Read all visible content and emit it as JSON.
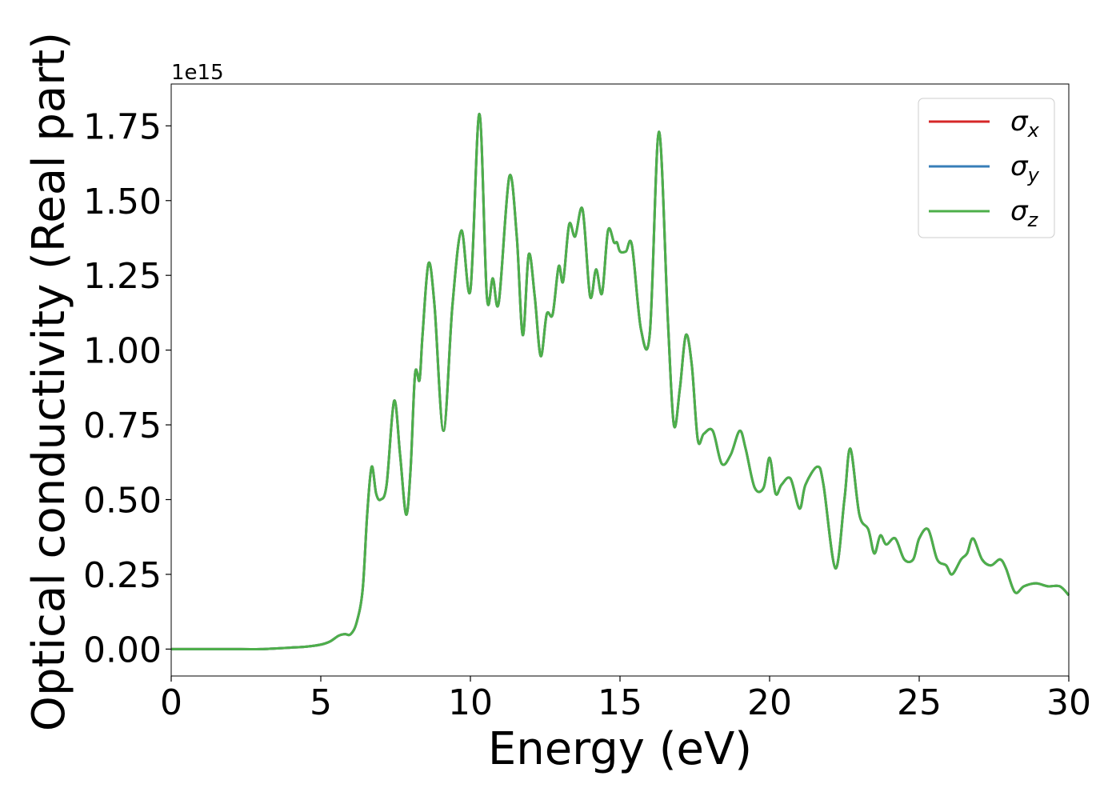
{
  "chart_data": {
    "type": "line",
    "title": "",
    "xlabel": "Energy (eV)",
    "ylabel": "Optical conductivity (Real part)",
    "y_offset_label": "1e15",
    "y_scale_factor": 1000000000000000.0,
    "xlim": [
      0,
      30
    ],
    "ylim": [
      -0.09,
      1.89
    ],
    "x_ticks": [
      0,
      5,
      10,
      15,
      20,
      25,
      30
    ],
    "x_tick_labels": [
      "0",
      "5",
      "10",
      "15",
      "20",
      "25",
      "30"
    ],
    "y_ticks": [
      0,
      0.25,
      0.5,
      0.75,
      1.0,
      1.25,
      1.5,
      1.75
    ],
    "y_tick_labels": [
      "0.00",
      "0.25",
      "0.50",
      "0.75",
      "1.00",
      "1.25",
      "1.50",
      "1.75"
    ],
    "grid": false,
    "legend_position": "top-right",
    "x": [
      0,
      1,
      2,
      3,
      4,
      4.5,
      5,
      5.3,
      5.6,
      5.8,
      6.0,
      6.2,
      6.4,
      6.55,
      6.7,
      6.85,
      7.0,
      7.2,
      7.45,
      7.65,
      7.85,
      8.0,
      8.15,
      8.3,
      8.4,
      8.6,
      8.8,
      9.1,
      9.4,
      9.7,
      10.0,
      10.3,
      10.55,
      10.75,
      10.95,
      11.3,
      11.55,
      11.75,
      11.95,
      12.15,
      12.35,
      12.55,
      12.75,
      12.95,
      13.1,
      13.3,
      13.5,
      13.75,
      14.0,
      14.2,
      14.4,
      14.6,
      14.8,
      14.9,
      15.0,
      15.2,
      15.4,
      15.7,
      16.0,
      16.3,
      16.6,
      16.8,
      17.0,
      17.2,
      17.4,
      17.6,
      17.8,
      18.1,
      18.4,
      18.7,
      19.0,
      19.2,
      19.5,
      19.8,
      20.0,
      20.2,
      20.4,
      20.7,
      21.0,
      21.2,
      21.6,
      21.8,
      22.2,
      22.5,
      22.7,
      23.0,
      23.3,
      23.5,
      23.7,
      23.9,
      24.2,
      24.5,
      24.8,
      25.0,
      25.3,
      25.6,
      25.9,
      26.1,
      26.4,
      26.6,
      26.8,
      27.1,
      27.4,
      27.7,
      27.9,
      28.2,
      28.5,
      28.9,
      29.3,
      29.7,
      30.0
    ],
    "series": [
      {
        "name": "σx",
        "color": "#d62728",
        "values": [
          0,
          0,
          0,
          0,
          0.005,
          0.008,
          0.015,
          0.025,
          0.045,
          0.05,
          0.05,
          0.09,
          0.2,
          0.45,
          0.61,
          0.52,
          0.5,
          0.55,
          0.83,
          0.65,
          0.45,
          0.6,
          0.92,
          0.9,
          1.05,
          1.29,
          1.15,
          0.73,
          1.15,
          1.4,
          1.2,
          1.79,
          1.18,
          1.24,
          1.16,
          1.58,
          1.38,
          1.05,
          1.32,
          1.18,
          0.98,
          1.12,
          1.12,
          1.28,
          1.23,
          1.42,
          1.38,
          1.47,
          1.18,
          1.27,
          1.19,
          1.4,
          1.36,
          1.36,
          1.33,
          1.33,
          1.35,
          1.07,
          1.06,
          1.73,
          1.1,
          0.75,
          0.87,
          1.05,
          0.95,
          0.7,
          0.72,
          0.73,
          0.62,
          0.65,
          0.73,
          0.67,
          0.54,
          0.54,
          0.64,
          0.52,
          0.55,
          0.57,
          0.47,
          0.55,
          0.61,
          0.55,
          0.27,
          0.5,
          0.67,
          0.45,
          0.4,
          0.32,
          0.38,
          0.35,
          0.37,
          0.3,
          0.3,
          0.37,
          0.4,
          0.3,
          0.28,
          0.25,
          0.3,
          0.32,
          0.37,
          0.3,
          0.28,
          0.3,
          0.27,
          0.19,
          0.21,
          0.22,
          0.21,
          0.21,
          0.18
        ]
      },
      {
        "name": "σy",
        "color": "#377eb8",
        "values": [
          0,
          0,
          0,
          0,
          0.005,
          0.008,
          0.015,
          0.025,
          0.045,
          0.05,
          0.05,
          0.09,
          0.2,
          0.45,
          0.61,
          0.52,
          0.5,
          0.55,
          0.83,
          0.65,
          0.45,
          0.6,
          0.92,
          0.9,
          1.05,
          1.29,
          1.15,
          0.73,
          1.15,
          1.4,
          1.2,
          1.79,
          1.18,
          1.24,
          1.16,
          1.58,
          1.38,
          1.05,
          1.32,
          1.18,
          0.98,
          1.12,
          1.12,
          1.28,
          1.23,
          1.42,
          1.38,
          1.47,
          1.18,
          1.27,
          1.19,
          1.4,
          1.36,
          1.36,
          1.33,
          1.33,
          1.35,
          1.07,
          1.06,
          1.73,
          1.1,
          0.75,
          0.87,
          1.05,
          0.95,
          0.7,
          0.72,
          0.73,
          0.62,
          0.65,
          0.73,
          0.67,
          0.54,
          0.54,
          0.64,
          0.52,
          0.55,
          0.57,
          0.47,
          0.55,
          0.61,
          0.55,
          0.27,
          0.5,
          0.67,
          0.45,
          0.4,
          0.32,
          0.38,
          0.35,
          0.37,
          0.3,
          0.3,
          0.37,
          0.4,
          0.3,
          0.28,
          0.25,
          0.3,
          0.32,
          0.37,
          0.3,
          0.28,
          0.3,
          0.27,
          0.19,
          0.21,
          0.22,
          0.21,
          0.21,
          0.18
        ]
      },
      {
        "name": "σz",
        "color": "#4daf4a",
        "values": [
          0,
          0,
          0,
          0,
          0.005,
          0.008,
          0.015,
          0.025,
          0.045,
          0.05,
          0.05,
          0.09,
          0.2,
          0.45,
          0.61,
          0.52,
          0.5,
          0.55,
          0.83,
          0.65,
          0.45,
          0.6,
          0.92,
          0.9,
          1.05,
          1.29,
          1.15,
          0.73,
          1.15,
          1.4,
          1.2,
          1.79,
          1.18,
          1.24,
          1.16,
          1.58,
          1.38,
          1.05,
          1.32,
          1.18,
          0.98,
          1.12,
          1.12,
          1.28,
          1.23,
          1.42,
          1.38,
          1.47,
          1.18,
          1.27,
          1.19,
          1.4,
          1.36,
          1.36,
          1.33,
          1.33,
          1.35,
          1.07,
          1.06,
          1.73,
          1.1,
          0.75,
          0.87,
          1.05,
          0.95,
          0.7,
          0.72,
          0.73,
          0.62,
          0.65,
          0.73,
          0.67,
          0.54,
          0.54,
          0.64,
          0.52,
          0.55,
          0.57,
          0.47,
          0.55,
          0.61,
          0.55,
          0.27,
          0.5,
          0.67,
          0.45,
          0.4,
          0.32,
          0.38,
          0.35,
          0.37,
          0.3,
          0.3,
          0.37,
          0.4,
          0.3,
          0.28,
          0.25,
          0.3,
          0.32,
          0.37,
          0.3,
          0.28,
          0.3,
          0.27,
          0.19,
          0.21,
          0.22,
          0.21,
          0.21,
          0.18
        ]
      }
    ],
    "legend": [
      {
        "symbol": "σ",
        "subscript": "x",
        "color": "#d62728"
      },
      {
        "symbol": "σ",
        "subscript": "y",
        "color": "#377eb8"
      },
      {
        "symbol": "σ",
        "subscript": "z",
        "color": "#4daf4a"
      }
    ]
  }
}
